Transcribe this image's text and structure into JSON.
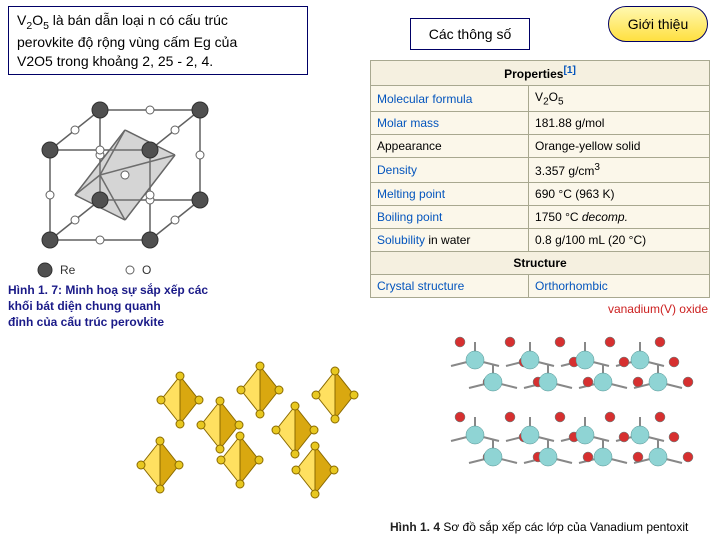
{
  "main_desc": {
    "l1a": "V",
    "l1b": "2",
    "l1c": "O",
    "l1d": "5",
    "l1e": " là bán dẫn loại  n  có cấu trúc",
    "l2": "perovkite độ rộng vùng cấm Eg của",
    "l3": "V2O5 trong khoảng 2, 25 - 2, 4."
  },
  "params_label": "Các thông số",
  "intro_label": "Giới thiệu",
  "caption1": {
    "bold": "Hình 1. 7: Minh hoạ sự sắp xếp các",
    "l2": "khối bát diện chung quanh",
    "l3": "đỉnh của cấu trúc perovkite"
  },
  "table": {
    "header1": "Properties",
    "ref": "[1]",
    "rows": [
      {
        "k": "Molecular formula",
        "klink": true,
        "v_html": "V<sub>2</sub>O<sub>5</sub>"
      },
      {
        "k": "Molar mass",
        "klink": true,
        "v": "181.88 g/mol"
      },
      {
        "k": "Appearance",
        "klink": false,
        "v": "Orange-yellow solid"
      },
      {
        "k": "Density",
        "klink": true,
        "v_html": "3.357 g/cm<sup>3</sup>"
      },
      {
        "k": "Melting point",
        "klink": true,
        "v": "690 °C (963 K)"
      },
      {
        "k": "Boiling point",
        "klink": true,
        "v_html": "1750 °C <span class=\"em\">decomp.</span>"
      },
      {
        "k_html": "<span class=\"link\">Solubility</span> in water",
        "v": "0.8 g/100 mL (20 °C)"
      }
    ],
    "header2": "Structure",
    "struct_row": {
      "k": "Crystal structure",
      "klink": true,
      "v": "Orthorhombic",
      "vlink": true
    }
  },
  "lattice_label": "vanadium(V) oxide",
  "caption2": {
    "bold": "Hình 1. 4",
    "rest": " Sơ đồ sắp xếp các lớp của Vanadium pentoxit"
  },
  "cube": {
    "legend_re": "Re",
    "legend_o": "O",
    "stroke": "#606060",
    "re_fill": "#505050",
    "o_fill": "#ffffff"
  },
  "octa": {
    "face_light": "#ffe060",
    "face_dark": "#d9a810",
    "edge": "#8a6a00",
    "vertex_fill": "#e8c820"
  },
  "lattice": {
    "v_color": "#8fd4d4",
    "o_color": "#d63030",
    "bond": "#888888"
  }
}
